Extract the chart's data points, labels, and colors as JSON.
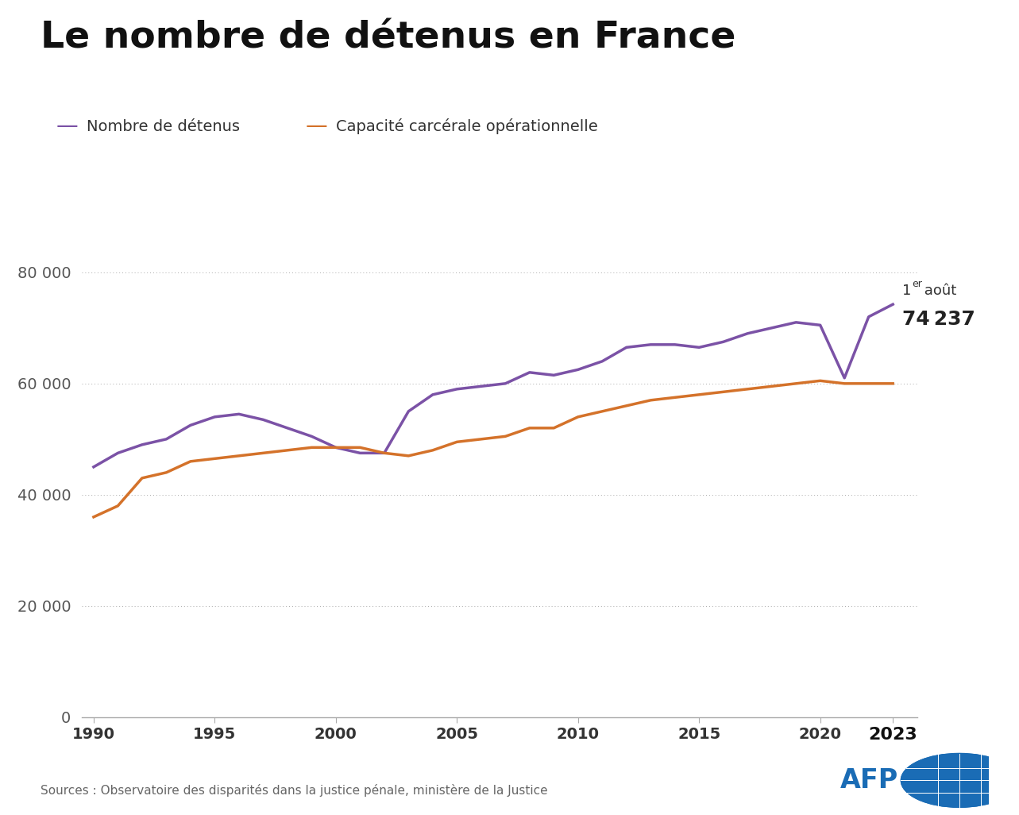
{
  "title": "Le nombre de détenus en France",
  "legend1_label": "Nombre de détenus",
  "legend2_label": "Capacité carcérale opérationnelle",
  "color_detenus": "#7B52A6",
  "color_capacite": "#D4722A",
  "annotation_line1": "1er août",
  "annotation_superscript": "er",
  "annotation_line2": "74 237",
  "source_text": "Sources : Observatoire des disparités dans la justice pénale, ministère de la Justice",
  "ylim": [
    0,
    85000
  ],
  "yticks": [
    0,
    20000,
    40000,
    60000,
    80000
  ],
  "ytick_labels": [
    "0",
    "20 000",
    "40 000",
    "60 000",
    "80 000"
  ],
  "xticks": [
    1990,
    1995,
    2000,
    2005,
    2010,
    2015,
    2020,
    2023
  ],
  "xtick_labels": [
    "1990",
    "1995",
    "2000",
    "2005",
    "2010",
    "2015",
    "2020",
    "2023"
  ],
  "background_color": "#FFFFFF",
  "grid_color": "#AAAAAA",
  "years_detenus": [
    1990,
    1991,
    1992,
    1993,
    1994,
    1995,
    1996,
    1997,
    1998,
    1999,
    2000,
    2001,
    2002,
    2003,
    2004,
    2005,
    2006,
    2007,
    2008,
    2009,
    2010,
    2011,
    2012,
    2013,
    2014,
    2015,
    2016,
    2017,
    2018,
    2019,
    2020,
    2021,
    2022,
    2023
  ],
  "values_detenus": [
    45000,
    47500,
    49000,
    50000,
    52500,
    54000,
    54500,
    53500,
    52000,
    50500,
    48500,
    47500,
    47500,
    55000,
    58000,
    59000,
    59500,
    60000,
    62000,
    61500,
    62500,
    64000,
    66500,
    67000,
    67000,
    66500,
    67500,
    69000,
    70000,
    71000,
    70500,
    61000,
    72000,
    74237
  ],
  "years_capacite": [
    1990,
    1991,
    1992,
    1993,
    1994,
    1995,
    1996,
    1997,
    1998,
    1999,
    2000,
    2001,
    2002,
    2003,
    2004,
    2005,
    2006,
    2007,
    2008,
    2009,
    2010,
    2011,
    2012,
    2013,
    2014,
    2015,
    2016,
    2017,
    2018,
    2019,
    2020,
    2021,
    2022,
    2023
  ],
  "values_capacite": [
    36000,
    38000,
    43000,
    44000,
    46000,
    46500,
    47000,
    47500,
    48000,
    48500,
    48500,
    48500,
    47500,
    47000,
    48000,
    49500,
    50000,
    50500,
    52000,
    52000,
    54000,
    55000,
    56000,
    57000,
    57500,
    58000,
    58500,
    59000,
    59500,
    60000,
    60500,
    60000,
    60000,
    60000
  ]
}
